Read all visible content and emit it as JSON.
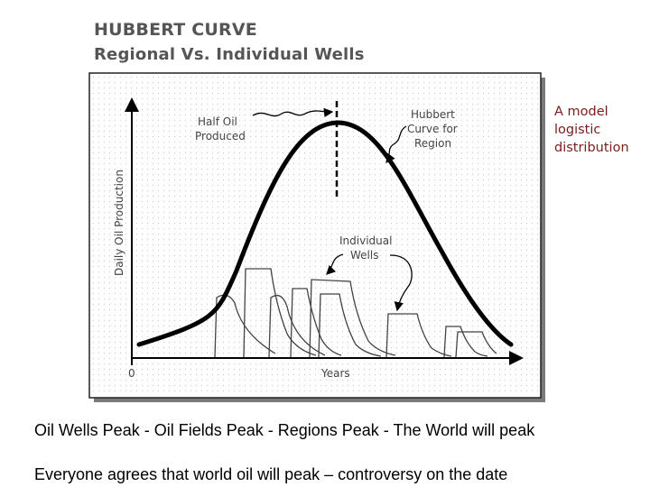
{
  "title": "HUBBERT CURVE",
  "subtitle": "Regional Vs. Individual Wells",
  "diagram": {
    "half_oil_label": [
      "Half Oil",
      "Produced"
    ],
    "hubbert_label": [
      "Hubbert",
      "Curve for",
      "Region"
    ],
    "wells_label": [
      "Individual",
      "Wells"
    ],
    "y_axis_label": "Daily Oil Production",
    "x_axis_label": "Years",
    "origin_label": "0"
  },
  "annotation": [
    "A model",
    "logistic",
    "distribution"
  ],
  "captions": {
    "line1": "Oil Wells Peak - Oil Fields Peak - Regions Peak - The World will peak",
    "line2": "Everyone agrees that world oil will peak – controversy on the date"
  },
  "colors": {
    "annotation": "#7a1d1d",
    "curve": "#000000",
    "panel_shadow": "#777777"
  }
}
